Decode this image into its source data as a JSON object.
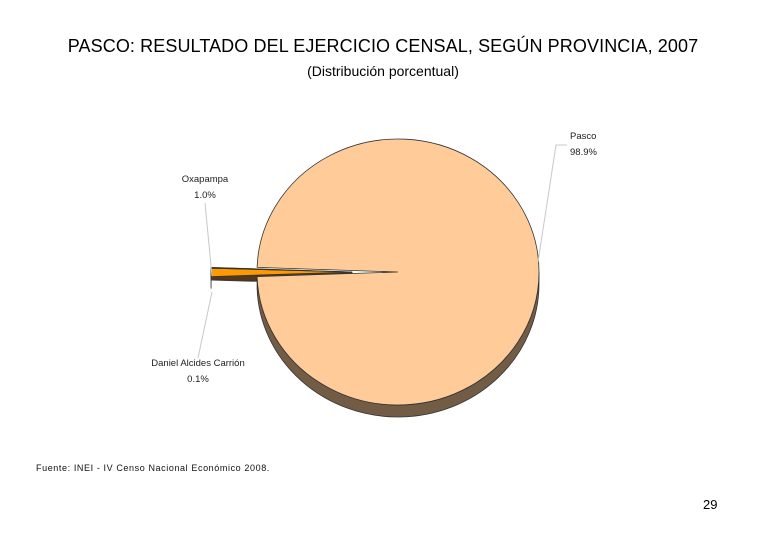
{
  "title": "PASCO: RESULTADO DEL EJERCICIO CENSAL, SEGÚN PROVINCIA, 2007",
  "subtitle": "(Distribución porcentual)",
  "chart_data": {
    "type": "pie",
    "title": "PASCO: RESULTADO DEL EJERCICIO CENSAL, SEGÚN PROVINCIA, 2007",
    "subtitle": "(Distribución porcentual)",
    "slices": [
      {
        "label": "Pasco",
        "value": 98.9,
        "value_label": "98.9%",
        "color": "#FFCC99"
      },
      {
        "label": "Oxapampa",
        "value": 1.0,
        "value_label": "1.0%",
        "color": "#FF9900"
      },
      {
        "label": "Daniel Alcides Carrión",
        "value": 0.1,
        "value_label": "0.1%",
        "color": "#996633"
      }
    ],
    "style": "3d-pie"
  },
  "source": "Fuente: INEI - IV Censo Nacional Económico 2008.",
  "page_number": "29"
}
